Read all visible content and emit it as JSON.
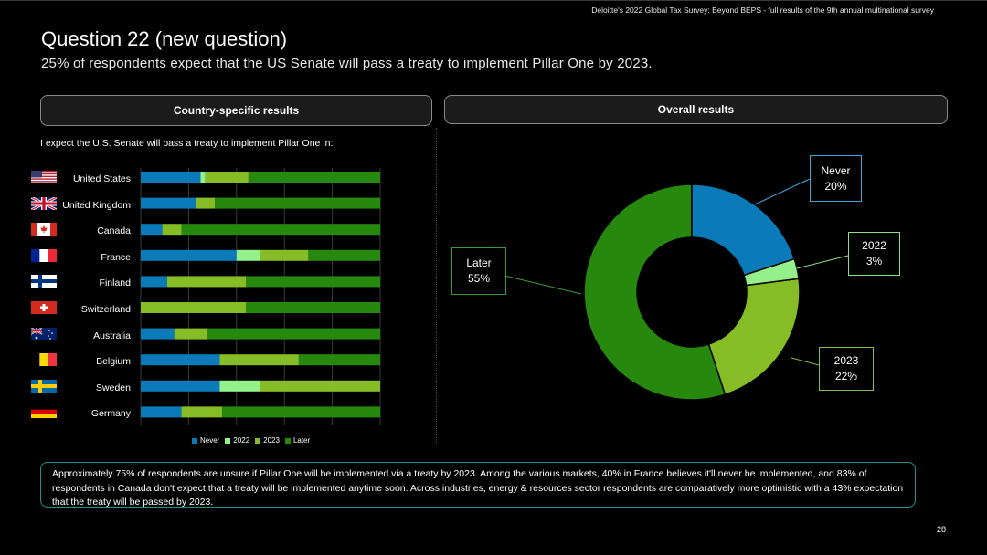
{
  "header": {
    "survey_line": "Deloitte's 2022 Global Tax Survey: Beyond BEPS  - full results of the 9th annual multinational survey",
    "title": "Question 22 (new question)",
    "subtitle": "25% of respondents expect that the US Senate will pass a treaty to implement Pillar One by 2023."
  },
  "tabs": {
    "left": "Country-specific results",
    "right": "Overall results"
  },
  "question_text": "I expect the U.S. Senate will pass a treaty to implement Pillar One in:",
  "colors": {
    "never": "#0a7ab8",
    "y2022": "#93f08a",
    "y2023": "#86bc25",
    "later": "#26890d"
  },
  "chart_data": [
    {
      "type": "bar",
      "orientation": "horizontal-stacked-100",
      "categories": [
        "United States",
        "United Kingdom",
        "Canada",
        "France",
        "Finland",
        "Switzerland",
        "Australia",
        "Belgium",
        "Sweden",
        "Germany"
      ],
      "flags": [
        "flag-us",
        "flag-uk",
        "flag-ca",
        "flag-fr",
        "flag-fi",
        "flag-ch",
        "flag-au",
        "flag-be",
        "flag-se",
        "flag-de"
      ],
      "series": [
        {
          "name": "Never",
          "values": [
            25,
            23,
            9,
            40,
            11,
            0,
            14,
            33,
            33,
            17
          ]
        },
        {
          "name": "2022",
          "values": [
            2,
            0,
            0,
            10,
            0,
            0,
            0,
            0,
            17,
            0
          ]
        },
        {
          "name": "2023",
          "values": [
            18,
            8,
            8,
            20,
            33,
            44,
            14,
            33,
            50,
            17
          ]
        },
        {
          "name": "Later",
          "values": [
            55,
            69,
            83,
            30,
            56,
            56,
            72,
            34,
            0,
            66
          ]
        }
      ],
      "xlim": [
        0,
        100
      ],
      "grid": true,
      "legend": "bottom"
    },
    {
      "type": "pie",
      "style": "donut",
      "slices": [
        {
          "label": "Never",
          "value": 20
        },
        {
          "label": "2022",
          "value": 3
        },
        {
          "label": "2023",
          "value": 22
        },
        {
          "label": "Later",
          "value": 55
        }
      ]
    }
  ],
  "callouts": {
    "never": {
      "label": "Never",
      "pct": "20%"
    },
    "y2022": {
      "label": "2022",
      "pct": "3%"
    },
    "y2023": {
      "label": "2023",
      "pct": "22%"
    },
    "later": {
      "label": "Later",
      "pct": "55%"
    }
  },
  "summary": "Approximately 75% of respondents are unsure if Pillar One will be implemented via a treaty by 2023. Among the various markets, 40% in France believes it'll never be implemented, and 83% of respondents in Canada don't expect that a treaty will be implemented anytime soon. Across industries, energy & resources sector respondents are comparatively more optimistic with a 43% expectation that the treaty will be passed by 2023.",
  "page_number": "28"
}
